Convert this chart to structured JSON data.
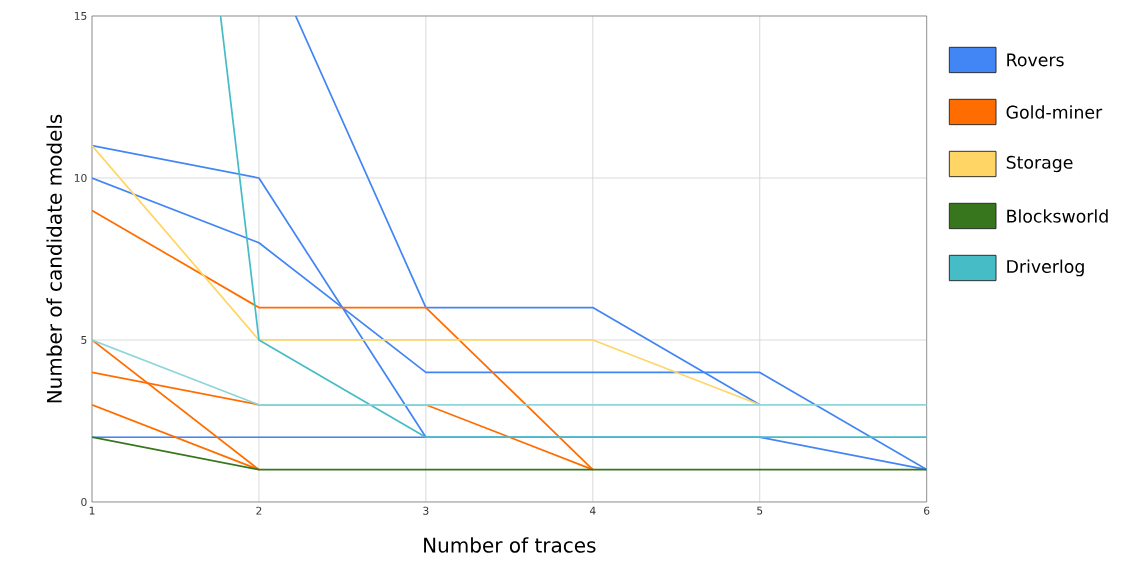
{
  "chart_data": {
    "type": "line",
    "xlabel": "Number of traces",
    "ylabel": "Number of candidate models",
    "x": [
      1,
      2,
      3,
      4,
      5,
      6
    ],
    "xlim": [
      1,
      6
    ],
    "ylim": [
      0,
      15
    ],
    "xticks": [
      1,
      2,
      3,
      4,
      5,
      6
    ],
    "yticks": [
      0,
      5,
      10,
      15
    ],
    "grid": true,
    "legend": "right",
    "marker": "none",
    "line_style": "solid",
    "series": [
      {
        "name": "Rovers",
        "color": "#4285f4",
        "values": [
          11,
          10,
          2,
          null,
          null,
          null
        ]
      },
      {
        "color": "#4285f4",
        "values": [
          10,
          8,
          4,
          4,
          4,
          1
        ]
      },
      {
        "color": "#4285f4",
        "x": [
          2.22,
          3,
          4,
          5
        ],
        "values": [
          15,
          6,
          6,
          3
        ]
      },
      {
        "color": "#4285f4",
        "values": [
          2,
          2,
          2,
          2,
          2,
          1
        ]
      },
      {
        "name": "Gold-miner",
        "color": "#ff6d01",
        "values": [
          9,
          6,
          6,
          1,
          null,
          null
        ]
      },
      {
        "color": "#ff6d01",
        "values": [
          4,
          3,
          3,
          1,
          null,
          null
        ]
      },
      {
        "color": "#ff6d01",
        "values": [
          3,
          1,
          null,
          null,
          null,
          null
        ]
      },
      {
        "color": "#ff6d01",
        "values": [
          5,
          1,
          null,
          null,
          null,
          null
        ]
      },
      {
        "name": "Storage",
        "color": "#ffd666",
        "values": [
          11,
          5,
          5,
          5,
          3,
          null
        ]
      },
      {
        "name": "Blocksworld",
        "color": "#38761d",
        "values": [
          2,
          1,
          1,
          1,
          1,
          1
        ]
      },
      {
        "name": "Driverlog",
        "color": "#46bdc6",
        "x": [
          1.77,
          2,
          3,
          4,
          5,
          6
        ],
        "values": [
          15,
          5,
          2,
          2,
          2,
          2
        ]
      },
      {
        "color": "#8fd6da",
        "values": [
          5,
          3,
          3,
          3,
          3,
          3
        ]
      }
    ]
  }
}
